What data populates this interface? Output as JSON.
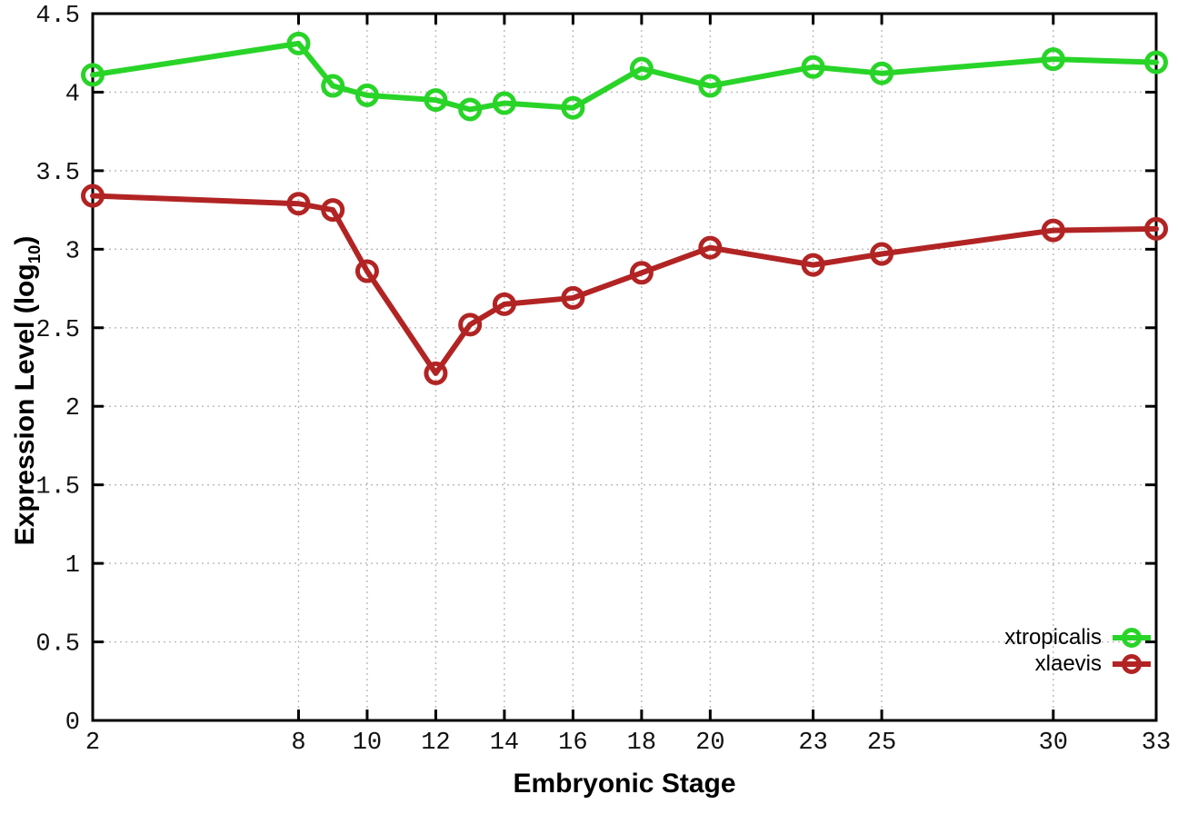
{
  "page": {
    "background": "#ffffff"
  },
  "chart_data": {
    "type": "line",
    "title": "",
    "xlabel": "Embryonic Stage",
    "ylabel": "Expression Level (log10)",
    "ylabel_parts": {
      "pre": "Expression Level (log",
      "sub": "10",
      "post": ")"
    },
    "x": [
      2,
      8,
      9,
      10,
      12,
      13,
      14,
      16,
      18,
      20,
      23,
      25,
      30,
      33
    ],
    "series": [
      {
        "name": "xtropicalis",
        "color": "#28d428",
        "values": [
          4.11,
          4.31,
          4.04,
          3.98,
          3.95,
          3.89,
          3.93,
          3.9,
          4.15,
          4.04,
          4.16,
          4.12,
          4.21,
          4.19
        ]
      },
      {
        "name": "xlaevis",
        "color": "#b22424",
        "values": [
          3.34,
          3.29,
          3.25,
          2.86,
          2.21,
          2.52,
          2.65,
          2.69,
          2.85,
          3.01,
          2.9,
          2.97,
          3.12,
          3.13
        ]
      }
    ],
    "xlim": [
      2,
      33
    ],
    "ylim": [
      0,
      4.5
    ],
    "xticks": [
      2,
      8,
      10,
      12,
      14,
      16,
      18,
      20,
      23,
      25,
      30,
      33
    ],
    "yticks": [
      0,
      0.5,
      1,
      1.5,
      2,
      2.5,
      3,
      3.5,
      4,
      4.5
    ],
    "ytick_labels": [
      "0",
      "0.5",
      "1",
      "1.5",
      "2",
      "2.5",
      "3",
      "3.5",
      "4",
      "4.5"
    ],
    "grid": true,
    "grid_color": "#b9b9b9",
    "axis_color": "#000000",
    "text_color": "#111111",
    "legend_position": "bottom-right",
    "legend": [
      "xtropicalis",
      "xlaevis"
    ]
  }
}
